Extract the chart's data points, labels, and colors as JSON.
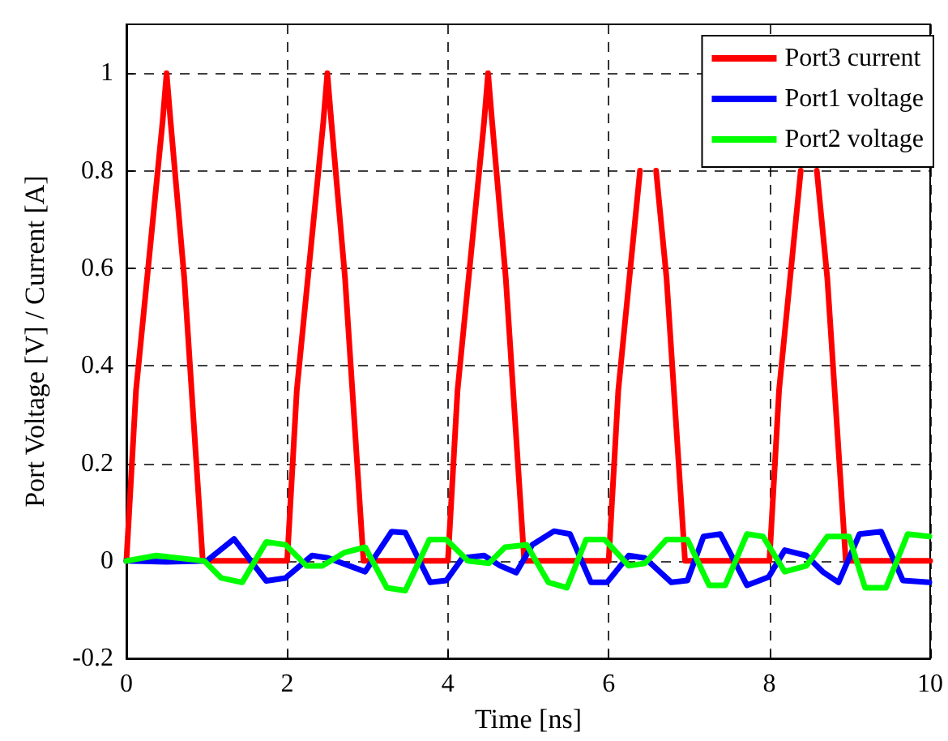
{
  "chart_data": {
    "type": "line",
    "xlabel": "Time [ns]",
    "ylabel": "Port Voltage [V] / Current [A]",
    "xlim": [
      0,
      10
    ],
    "xticks": [
      0,
      2,
      4,
      6,
      8,
      10
    ],
    "ylim": [
      -0.2,
      1.1
    ],
    "yticks": [
      -0.2,
      0,
      0.2,
      0.4,
      0.6,
      0.8,
      1
    ],
    "grid": true,
    "legend": "top right",
    "line_style": "solid",
    "marker": "none",
    "series": [
      {
        "name": "Port3 current",
        "color": "#ff0000",
        "x": [
          0,
          0.12,
          0.45,
          0.5,
          0.55,
          0.72,
          0.95,
          2,
          2.12,
          2.45,
          2.5,
          2.55,
          2.72,
          2.95,
          4,
          4.12,
          4.45,
          4.5,
          4.55,
          4.72,
          4.95,
          6,
          6.12,
          6.39,
          6.45,
          6.5,
          6.55,
          6.59,
          6.72,
          6.95,
          8,
          8.12,
          8.39,
          8.45,
          8.5,
          8.55,
          8.59,
          8.72,
          8.95,
          10
        ],
        "values": [
          0,
          0.35,
          0.9,
          1,
          0.9,
          0.58,
          0,
          0,
          0.35,
          0.9,
          1,
          0.9,
          0.58,
          0,
          0,
          0.35,
          0.9,
          1,
          0.9,
          0.58,
          0,
          0,
          0.35,
          0.8,
          null,
          null,
          null,
          0.8,
          0.58,
          0,
          0,
          0.35,
          0.8,
          null,
          null,
          null,
          0.8,
          0.58,
          0,
          0
        ]
      },
      {
        "name": "Port1 voltage",
        "color": "#0000ff",
        "x": [
          0,
          0.5,
          1.0,
          1.34,
          1.74,
          1.98,
          2.31,
          2.51,
          2.97,
          3.3,
          3.47,
          3.78,
          3.98,
          4.18,
          4.45,
          4.65,
          4.85,
          5.05,
          5.32,
          5.52,
          5.78,
          5.98,
          6.25,
          6.45,
          6.78,
          6.98,
          7.18,
          7.39,
          7.72,
          7.99,
          8.19,
          8.46,
          8.66,
          8.86,
          9.12,
          9.39,
          9.66,
          9.99
        ],
        "values": [
          0,
          -0.002,
          0,
          0.045,
          -0.041,
          -0.035,
          0.011,
          0.006,
          -0.022,
          0.06,
          0.058,
          -0.044,
          -0.04,
          0.006,
          0.011,
          -0.01,
          -0.024,
          0.033,
          0.061,
          0.055,
          -0.044,
          -0.044,
          0.011,
          0.006,
          -0.044,
          -0.04,
          0.05,
          0.055,
          -0.05,
          -0.033,
          0.022,
          0.011,
          -0.022,
          -0.044,
          0.055,
          0.06,
          -0.04,
          -0.044
        ]
      },
      {
        "name": "Port2 voltage",
        "color": "#00ff00",
        "x": [
          0,
          0.37,
          0.97,
          1.18,
          1.44,
          1.74,
          1.98,
          2.24,
          2.44,
          2.71,
          2.97,
          3.24,
          3.47,
          3.77,
          3.98,
          4.25,
          4.51,
          4.71,
          4.98,
          5.25,
          5.48,
          5.72,
          5.95,
          6.25,
          6.45,
          6.72,
          6.98,
          7.25,
          7.45,
          7.72,
          7.92,
          8.19,
          8.46,
          8.72,
          8.99,
          9.19,
          9.45,
          9.72,
          9.99
        ],
        "values": [
          0,
          0.011,
          0,
          -0.035,
          -0.044,
          0.039,
          0.033,
          -0.01,
          -0.01,
          0.017,
          0.028,
          -0.055,
          -0.061,
          0.044,
          0.044,
          0,
          -0.005,
          0.028,
          0.033,
          -0.044,
          -0.055,
          0.044,
          0.044,
          -0.01,
          -0.005,
          0.044,
          0.044,
          -0.05,
          -0.05,
          0.055,
          0.05,
          -0.022,
          -0.01,
          0.05,
          0.05,
          -0.055,
          -0.055,
          0.055,
          0.05
        ]
      }
    ]
  }
}
